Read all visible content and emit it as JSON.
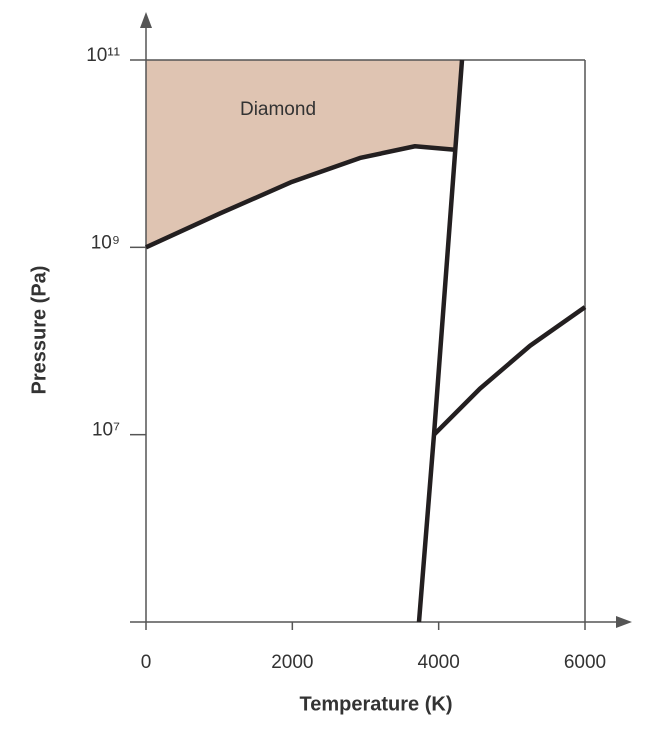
{
  "chart_data": {
    "type": "line",
    "xlabel": "Temperature (K)",
    "ylabel": "Pressure (Pa)",
    "xlim": [
      0,
      6000
    ],
    "xticks": [
      0,
      2000,
      4000,
      6000
    ],
    "ylim": [
      100000,
      100000000000
    ],
    "ylog": true,
    "yticks": [
      {
        "value": 10000000,
        "label": "10⁷"
      },
      {
        "value": 1000000000,
        "label": "10⁹"
      },
      {
        "value": 100000000000,
        "label": "10¹¹"
      }
    ],
    "grid": false,
    "area_color": "#dfc4b2",
    "annotations": [
      {
        "text": "Diamond"
      }
    ],
    "series": [
      {
        "color": "#231f20",
        "x": [
          0,
          1011,
          1995,
          2925,
          3676,
          4223
        ],
        "values": [
          1000000000,
          2300000000,
          5000000000,
          9000000000,
          12000000000,
          11000000000
        ]
      },
      {
        "color": "#231f20",
        "x": [
          3731,
          3936,
          4319
        ],
        "values": [
          100000,
          10000000,
          100000000000
        ]
      },
      {
        "color": "#231f20",
        "x": [
          3936,
          4565,
          5249,
          6000
        ],
        "values": [
          10000000,
          31000000,
          89000000,
          230000000
        ]
      }
    ]
  }
}
